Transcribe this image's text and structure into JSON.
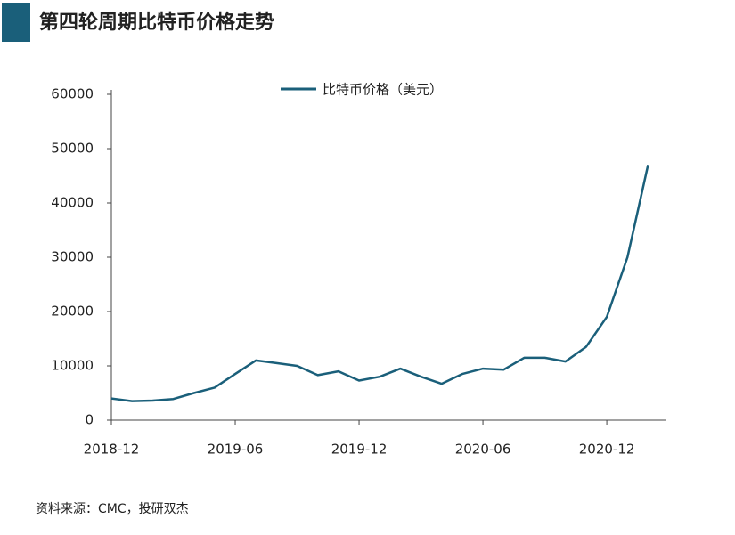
{
  "chart_data": {
    "type": "line",
    "title": "第四轮周期比特币价格走势",
    "source": "资料来源：CMC，投研双杰",
    "categories": [
      "2018-12",
      null,
      null,
      null,
      null,
      null,
      "2019-06",
      null,
      null,
      null,
      null,
      null,
      "2019-12",
      null,
      null,
      null,
      null,
      null,
      "2020-06",
      null,
      null,
      null,
      null,
      null,
      "2020-12",
      null,
      null
    ],
    "series": [
      {
        "name": "比特币价格（美元）",
        "color": "#1a5f7a",
        "values": [
          4000,
          3500,
          3600,
          3900,
          5000,
          6000,
          8500,
          11000,
          10500,
          10000,
          8300,
          9000,
          7300,
          8000,
          9500,
          8000,
          6700,
          8500,
          9500,
          9300,
          11500,
          11500,
          10800,
          13500,
          19000,
          30000,
          47000
        ]
      }
    ],
    "ylim": [
      0,
      60000
    ],
    "yticks": [
      0,
      10000,
      20000,
      30000,
      40000,
      50000,
      60000
    ]
  }
}
